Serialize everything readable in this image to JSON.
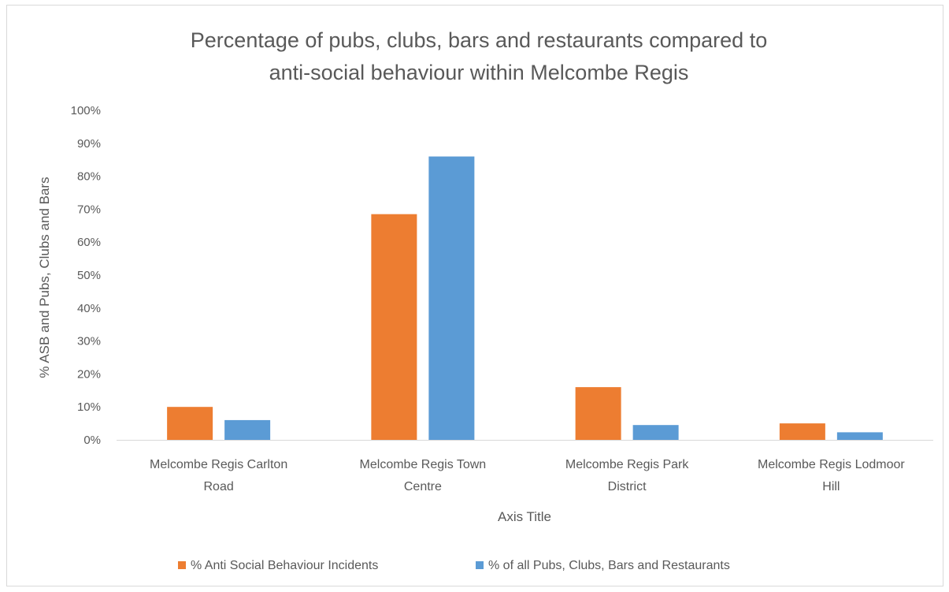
{
  "chart_data": {
    "type": "bar",
    "title": "Percentage of pubs, clubs, bars and restaurants compared to anti-social behaviour within Melcombe Regis",
    "title_lines": [
      "Percentage of pubs, clubs, bars and restaurants compared to",
      "anti-social behaviour within Melcombe Regis"
    ],
    "xlabel": "Axis Title",
    "ylabel": "% ASB and Pubs, Clubs and Bars",
    "ylim": [
      0,
      100
    ],
    "yticks": [
      "0%",
      "10%",
      "20%",
      "30%",
      "40%",
      "50%",
      "60%",
      "70%",
      "80%",
      "90%",
      "100%"
    ],
    "categories": [
      [
        "Melcombe Regis Carlton",
        "Road"
      ],
      [
        "Melcombe Regis Town",
        "Centre"
      ],
      [
        "Melcombe Regis Park",
        "District"
      ],
      [
        "Melcombe Regis Lodmoor",
        "Hill"
      ]
    ],
    "series": [
      {
        "name": "% Anti Social Behaviour Incidents",
        "color": "#ed7d31",
        "values": [
          10,
          68.5,
          16,
          5
        ]
      },
      {
        "name": "% of all Pubs, Clubs, Bars and Restaurants",
        "color": "#5b9bd5",
        "values": [
          6,
          86,
          4.5,
          2.3
        ]
      }
    ],
    "grid": false,
    "legend_position": "bottom"
  }
}
